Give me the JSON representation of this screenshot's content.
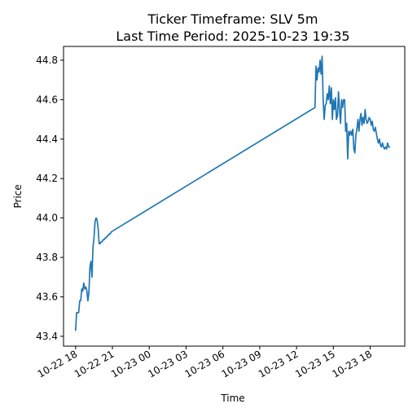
{
  "chart_data": {
    "type": "line",
    "title": "Ticker Timeframe: SLV 5m",
    "subtitle": "Last Time Period: 2025-10-23 19:35",
    "xlabel": "Time",
    "ylabel": "Price",
    "xlim": [
      "2025-10-22 17:01",
      "2025-10-23 20:49"
    ],
    "ylim": [
      43.35,
      44.87
    ],
    "x_ticks": [
      {
        "t": "2025-10-22 18:00",
        "label": "10-22 18"
      },
      {
        "t": "2025-10-22 21:00",
        "label": "10-22 21"
      },
      {
        "t": "2025-10-23 00:00",
        "label": "10-23 00"
      },
      {
        "t": "2025-10-23 03:00",
        "label": "10-23 03"
      },
      {
        "t": "2025-10-23 06:00",
        "label": "10-23 06"
      },
      {
        "t": "2025-10-23 09:00",
        "label": "10-23 09"
      },
      {
        "t": "2025-10-23 12:00",
        "label": "10-23 12"
      },
      {
        "t": "2025-10-23 15:00",
        "label": "10-23 15"
      },
      {
        "t": "2025-10-23 18:00",
        "label": "10-23 18"
      }
    ],
    "y_ticks": [
      43.4,
      43.6,
      43.8,
      44.0,
      44.2,
      44.4,
      44.6,
      44.8
    ],
    "y_tick_labels": [
      "43.4",
      "43.6",
      "43.8",
      "44.0",
      "44.2",
      "44.4",
      "44.6",
      "44.8"
    ],
    "grid": false,
    "color": "#1f77b4",
    "series": [
      {
        "x": [
          "2025-10-22 18:00",
          "2025-10-22 18:05",
          "2025-10-22 18:10",
          "2025-10-22 18:15",
          "2025-10-22 18:20",
          "2025-10-22 18:25",
          "2025-10-22 18:30",
          "2025-10-22 18:35",
          "2025-10-22 18:40",
          "2025-10-22 18:45",
          "2025-10-22 18:50",
          "2025-10-22 18:55",
          "2025-10-22 19:00",
          "2025-10-22 19:05",
          "2025-10-22 19:10",
          "2025-10-22 19:15",
          "2025-10-22 19:20",
          "2025-10-22 19:25",
          "2025-10-22 19:30",
          "2025-10-22 19:35",
          "2025-10-22 19:40",
          "2025-10-22 19:45",
          "2025-10-22 19:50",
          "2025-10-22 19:55",
          "2025-10-22 20:00",
          "2025-10-22 20:05",
          "2025-10-22 20:10",
          "2025-10-22 20:15",
          "2025-10-22 20:20",
          "2025-10-22 20:25",
          "2025-10-22 20:30",
          "2025-10-22 20:35",
          "2025-10-22 20:40",
          "2025-10-22 20:45",
          "2025-10-22 20:50",
          "2025-10-22 20:55",
          "2025-10-23 13:30",
          "2025-10-23 13:35",
          "2025-10-23 13:40",
          "2025-10-23 13:45",
          "2025-10-23 13:50",
          "2025-10-23 13:55",
          "2025-10-23 14:00",
          "2025-10-23 14:05",
          "2025-10-23 14:10",
          "2025-10-23 14:15",
          "2025-10-23 14:20",
          "2025-10-23 14:25",
          "2025-10-23 14:30",
          "2025-10-23 14:35",
          "2025-10-23 14:40",
          "2025-10-23 14:45",
          "2025-10-23 14:50",
          "2025-10-23 14:55",
          "2025-10-23 15:00",
          "2025-10-23 15:05",
          "2025-10-23 15:10",
          "2025-10-23 15:15",
          "2025-10-23 15:20",
          "2025-10-23 15:25",
          "2025-10-23 15:30",
          "2025-10-23 15:35",
          "2025-10-23 15:40",
          "2025-10-23 15:45",
          "2025-10-23 15:50",
          "2025-10-23 15:55",
          "2025-10-23 16:00",
          "2025-10-23 16:05",
          "2025-10-23 16:10",
          "2025-10-23 16:15",
          "2025-10-23 16:20",
          "2025-10-23 16:25",
          "2025-10-23 16:30",
          "2025-10-23 16:35",
          "2025-10-23 16:40",
          "2025-10-23 16:45",
          "2025-10-23 16:50",
          "2025-10-23 16:55",
          "2025-10-23 17:00",
          "2025-10-23 17:05",
          "2025-10-23 17:10",
          "2025-10-23 17:15",
          "2025-10-23 17:20",
          "2025-10-23 17:25",
          "2025-10-23 17:30",
          "2025-10-23 17:35",
          "2025-10-23 17:40",
          "2025-10-23 17:45",
          "2025-10-23 17:50",
          "2025-10-23 17:55",
          "2025-10-23 18:00",
          "2025-10-23 18:05",
          "2025-10-23 18:10",
          "2025-10-23 18:15",
          "2025-10-23 18:20",
          "2025-10-23 18:25",
          "2025-10-23 18:30",
          "2025-10-23 18:35",
          "2025-10-23 18:40",
          "2025-10-23 18:45",
          "2025-10-23 18:50",
          "2025-10-23 18:55",
          "2025-10-23 19:00",
          "2025-10-23 19:05",
          "2025-10-23 19:10",
          "2025-10-23 19:15",
          "2025-10-23 19:20",
          "2025-10-23 19:25",
          "2025-10-23 19:30",
          "2025-10-23 19:35"
        ],
        "y": [
          43.43,
          43.52,
          43.52,
          43.52,
          43.58,
          43.58,
          43.64,
          43.63,
          43.67,
          43.64,
          43.65,
          43.63,
          43.58,
          43.62,
          43.75,
          43.78,
          43.7,
          43.85,
          43.9,
          43.98,
          44.0,
          43.99,
          43.95,
          43.87,
          43.87,
          43.88,
          43.88,
          43.89,
          43.89,
          43.9,
          43.9,
          43.91,
          43.91,
          43.92,
          43.92,
          43.93,
          44.56,
          44.77,
          44.7,
          44.76,
          44.74,
          44.8,
          44.73,
          44.82,
          44.6,
          44.5,
          44.57,
          44.58,
          44.63,
          44.6,
          44.67,
          44.58,
          44.66,
          44.5,
          44.6,
          44.55,
          44.61,
          44.5,
          44.52,
          44.64,
          44.55,
          44.48,
          44.6,
          44.56,
          44.6,
          44.6,
          44.44,
          44.48,
          44.3,
          44.44,
          44.42,
          44.44,
          44.42,
          44.45,
          44.35,
          44.33,
          44.42,
          44.45,
          44.5,
          44.44,
          44.5,
          44.53,
          44.47,
          44.51,
          44.48,
          44.55,
          44.5,
          44.48,
          44.49,
          44.51,
          44.5,
          44.47,
          44.49,
          44.45,
          44.44,
          44.46,
          44.43,
          44.4,
          44.38,
          44.4,
          44.37,
          44.36,
          44.38,
          44.36,
          44.35,
          44.36,
          44.35,
          44.38,
          44.36,
          44.36
        ]
      }
    ]
  }
}
